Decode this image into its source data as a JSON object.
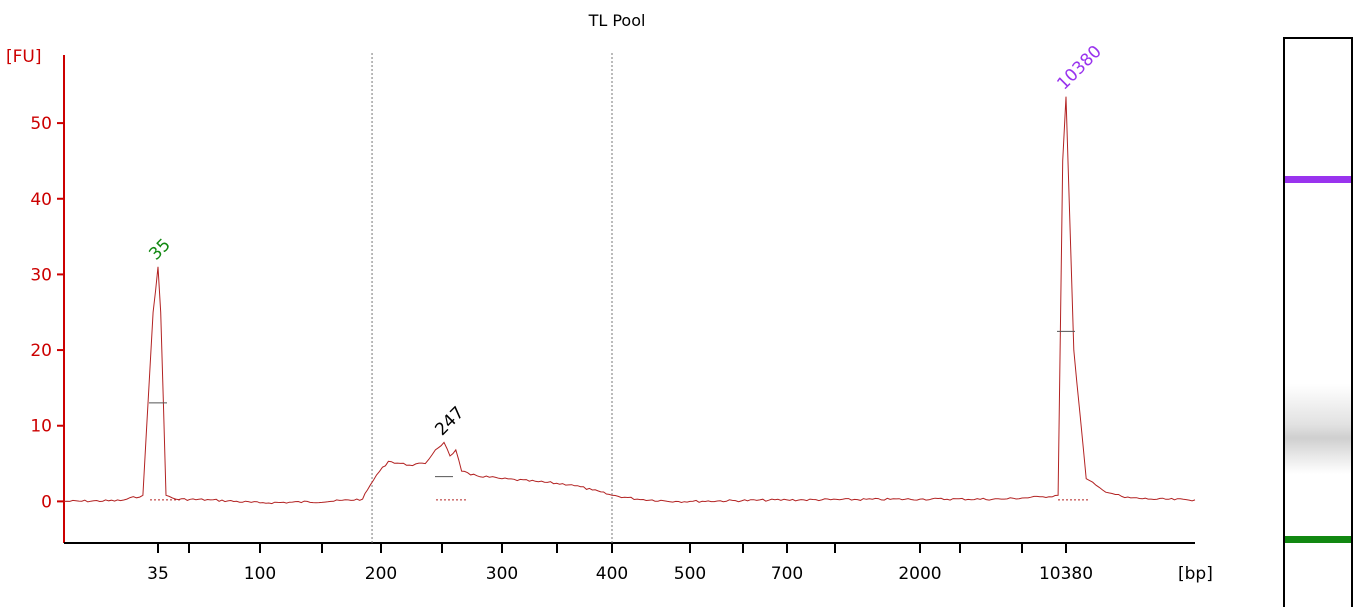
{
  "chart_data": {
    "type": "line",
    "title": "TL Pool",
    "ylabel": "[FU]",
    "xlabel": "[bp]",
    "ylim": [
      -5.5,
      59
    ],
    "yticks": [
      0,
      10,
      20,
      30,
      40,
      50
    ],
    "xtick_labels": [
      "35",
      "100",
      "200",
      "300",
      "400",
      "500",
      "700",
      "2000",
      "10380"
    ],
    "grid": false,
    "colors": {
      "axis": "#cc0000",
      "trace": "#b22222",
      "lower_marker": "#118811",
      "upper_marker": "#9933ee",
      "peak_label": "#000000"
    },
    "peaks": [
      {
        "label": "35",
        "color": "#118811",
        "x": 35,
        "y": 31
      },
      {
        "label": "247",
        "color": "#000000",
        "x": 247,
        "y": 7.8
      },
      {
        "label": "10380",
        "color": "#9933ee",
        "x": 10380,
        "y": 53.5
      }
    ],
    "region_markers_bp": [
      190,
      400
    ],
    "series": [
      {
        "x": [
          20,
          28,
          32,
          34,
          35,
          36,
          38,
          42,
          60,
          100,
          150,
          180,
          185,
          195,
          205,
          220,
          232,
          240,
          247,
          252,
          257,
          262,
          270,
          300,
          330,
          360,
          380,
          400,
          430,
          480,
          500,
          700,
          800,
          2000,
          5000,
          8000,
          9500,
          10000,
          10380,
          10800,
          11500,
          12500,
          14000,
          16000,
          20000
        ],
        "y": [
          0,
          0.1,
          0.8,
          25,
          31,
          25,
          0.8,
          0.3,
          0.2,
          -0.2,
          0,
          0.3,
          1.5,
          3.5,
          5.3,
          4.8,
          5,
          6.8,
          7.8,
          6,
          6.8,
          4,
          3.5,
          3,
          2.6,
          2.2,
          1.5,
          0.8,
          0.3,
          0,
          0,
          0.2,
          0.2,
          0.3,
          0.3,
          0.6,
          0.8,
          45,
          53.5,
          20,
          3,
          1.5,
          0.5,
          0.3,
          0.2
        ]
      }
    ],
    "gel_bands": [
      {
        "position": 0.245,
        "color": "#9933ee",
        "kind": "marker"
      },
      {
        "position": 0.685,
        "color": "#d0d0d0",
        "kind": "smear"
      },
      {
        "position": 0.878,
        "color": "#118811",
        "kind": "marker"
      }
    ]
  }
}
